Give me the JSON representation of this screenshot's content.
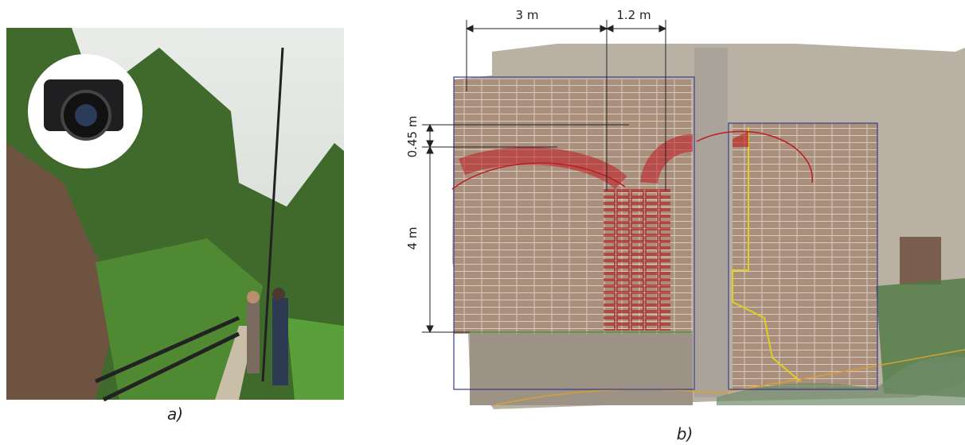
{
  "panel_a": {
    "caption": "a)"
  },
  "panel_b": {
    "caption": "b)",
    "dimensions": {
      "width_left": "3 m",
      "width_right": "1.2 m",
      "arch_height": "0.45 m",
      "wall_height": "4 m"
    }
  }
}
